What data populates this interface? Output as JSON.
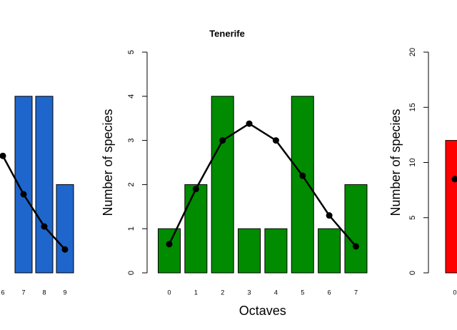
{
  "chart_data": [
    {
      "type": "bar",
      "categories": [
        "6",
        "7",
        "8",
        "9"
      ],
      "values": [
        null,
        4,
        4,
        2
      ],
      "color": "#1f66cc",
      "fitted_values": [
        2.65,
        1.78,
        1.05,
        0.53
      ],
      "line_color": "#000000",
      "ylim": [
        0,
        5
      ]
    },
    {
      "type": "bar",
      "title": "Tenerife",
      "xlabel": "Octaves",
      "ylabel": "Number of species",
      "categories": [
        "0",
        "1",
        "2",
        "3",
        "4",
        "5",
        "6",
        "7"
      ],
      "values": [
        1,
        2,
        4,
        1,
        1,
        4,
        1,
        2
      ],
      "color": "#008b00",
      "fitted_values": [
        0.65,
        1.9,
        3.0,
        3.38,
        3.0,
        2.2,
        1.3,
        0.6
      ],
      "line_color": "#000000",
      "ylim": [
        0,
        5
      ],
      "yticks": [
        0,
        1,
        2,
        3,
        4,
        5
      ]
    },
    {
      "type": "bar",
      "ylabel": "Number of species",
      "categories": [
        "0"
      ],
      "values": [
        12
      ],
      "color": "#ff0000",
      "fitted_values": [
        8.5
      ],
      "line_color": "#000000",
      "ylim": [
        0,
        20
      ],
      "yticks": [
        0,
        5,
        10,
        15,
        20
      ]
    }
  ]
}
